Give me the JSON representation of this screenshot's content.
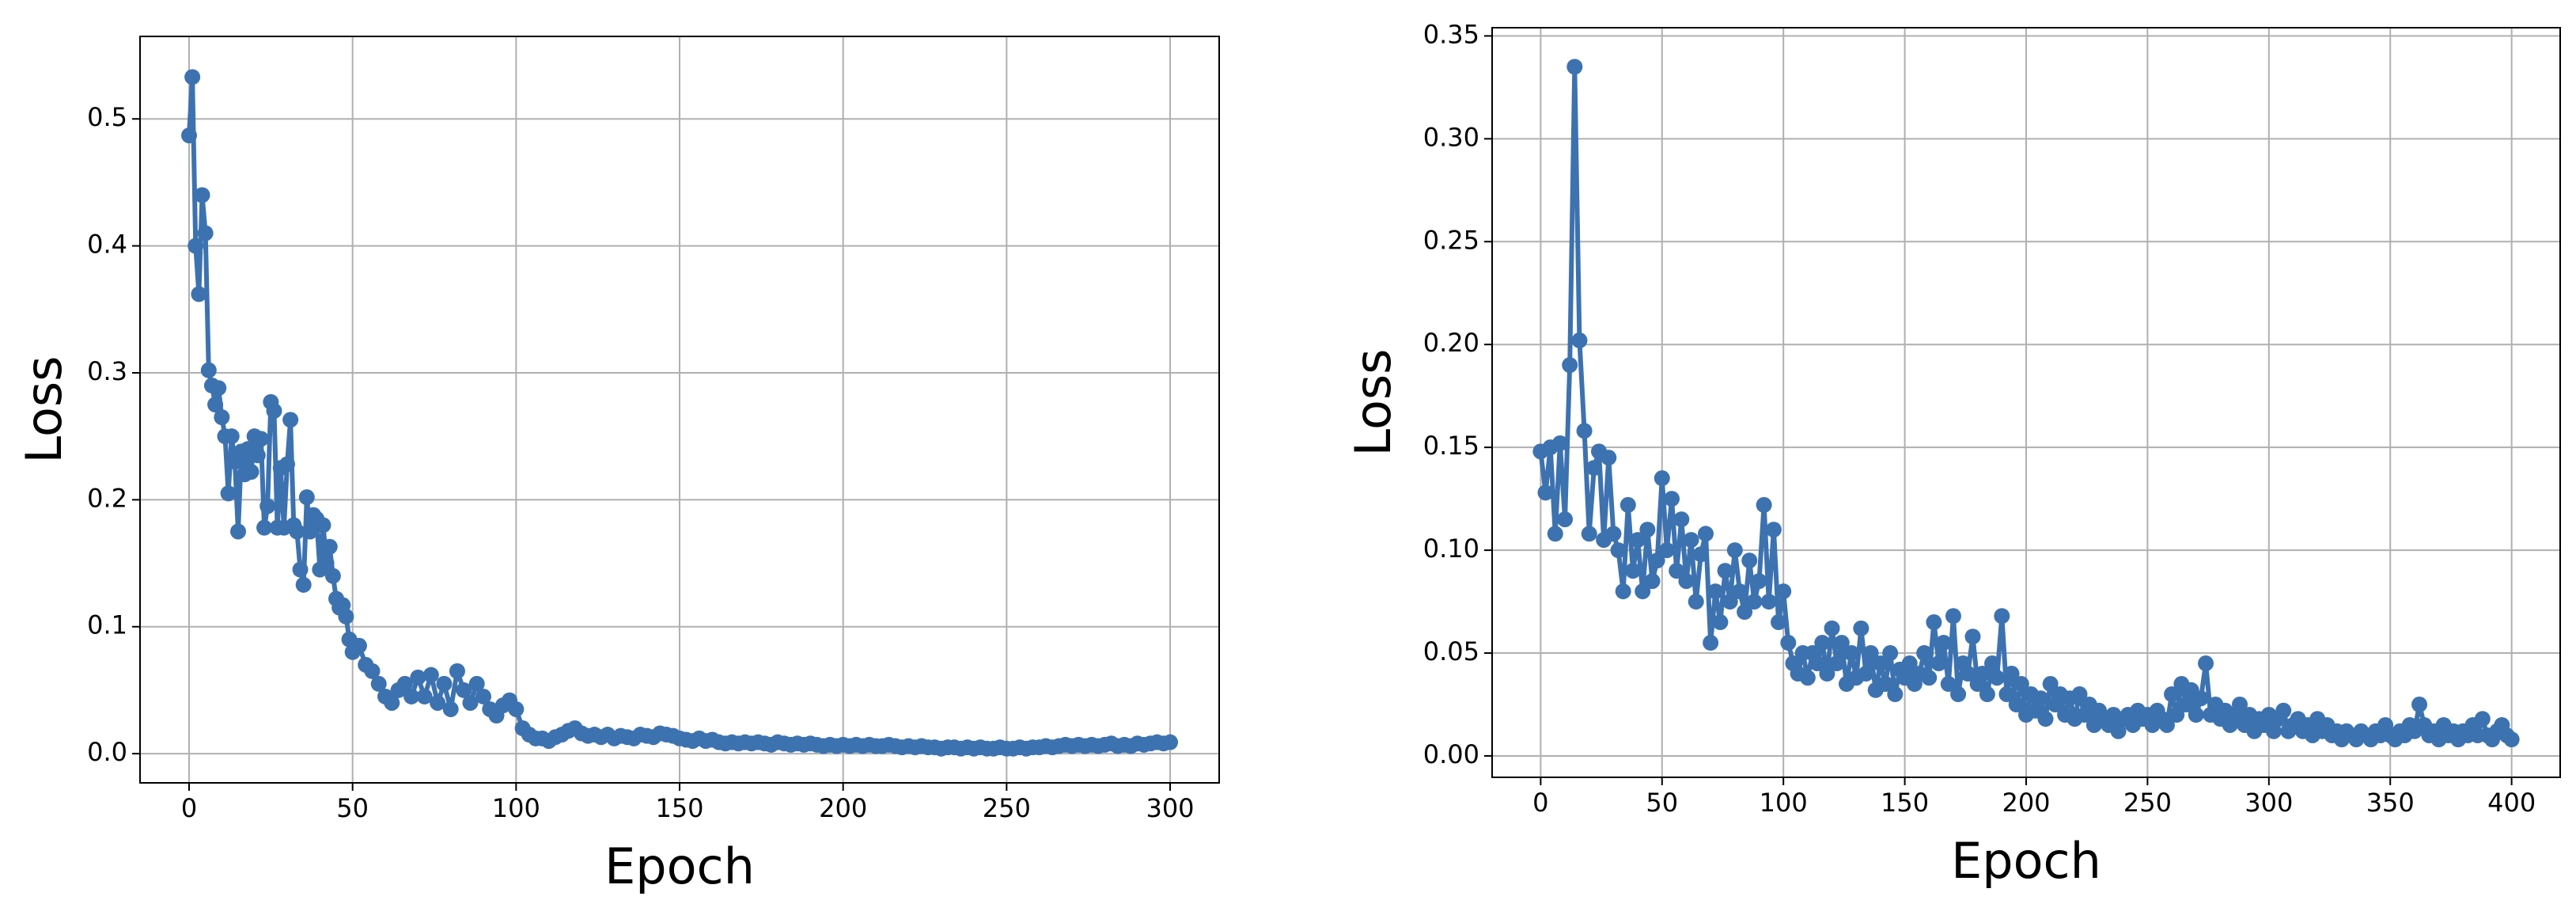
{
  "chart_data": [
    {
      "type": "line",
      "xlabel": "Epoch",
      "ylabel": "Loss",
      "color": "#3d72b0",
      "grid": true,
      "xlim": [
        -15,
        315
      ],
      "ylim": [
        -0.023,
        0.565
      ],
      "xticks": [
        0,
        50,
        100,
        150,
        200,
        250,
        300
      ],
      "yticks": [
        {
          "value": 0,
          "label": "0.0"
        },
        0.1,
        0.2,
        0.3,
        0.4,
        0.5
      ],
      "x": [
        0,
        1,
        2,
        3,
        4,
        5,
        6,
        7,
        8,
        9,
        10,
        11,
        12,
        13,
        14,
        15,
        16,
        17,
        18,
        19,
        20,
        21,
        22,
        23,
        24,
        25,
        26,
        27,
        28,
        29,
        30,
        31,
        32,
        33,
        34,
        35,
        36,
        37,
        38,
        39,
        40,
        41,
        42,
        43,
        44,
        45,
        46,
        47,
        48,
        49,
        50,
        52,
        54,
        56,
        58,
        60,
        62,
        64,
        66,
        68,
        70,
        72,
        74,
        76,
        78,
        80,
        82,
        84,
        86,
        88,
        90,
        92,
        94,
        96,
        98,
        100,
        102,
        104,
        106,
        108,
        110,
        112,
        114,
        116,
        118,
        120,
        122,
        124,
        126,
        128,
        130,
        132,
        134,
        136,
        138,
        140,
        142,
        144,
        146,
        148,
        150,
        152,
        154,
        156,
        158,
        160,
        162,
        164,
        166,
        168,
        170,
        172,
        174,
        176,
        178,
        180,
        182,
        184,
        186,
        188,
        190,
        192,
        194,
        196,
        198,
        200,
        202,
        204,
        206,
        208,
        210,
        212,
        214,
        216,
        218,
        220,
        222,
        224,
        226,
        228,
        230,
        232,
        234,
        236,
        238,
        240,
        242,
        244,
        246,
        248,
        250,
        252,
        254,
        256,
        258,
        260,
        262,
        264,
        266,
        268,
        270,
        272,
        274,
        276,
        278,
        280,
        282,
        284,
        286,
        288,
        290,
        292,
        294,
        296,
        298,
        300
      ],
      "values": [
        0.487,
        0.533,
        0.4,
        0.362,
        0.44,
        0.41,
        0.302,
        0.29,
        0.275,
        0.288,
        0.265,
        0.25,
        0.205,
        0.25,
        0.23,
        0.175,
        0.238,
        0.22,
        0.24,
        0.222,
        0.25,
        0.235,
        0.248,
        0.178,
        0.195,
        0.277,
        0.27,
        0.178,
        0.225,
        0.178,
        0.228,
        0.263,
        0.18,
        0.175,
        0.145,
        0.133,
        0.202,
        0.175,
        0.188,
        0.185,
        0.145,
        0.18,
        0.15,
        0.163,
        0.14,
        0.122,
        0.115,
        0.117,
        0.108,
        0.09,
        0.08,
        0.085,
        0.07,
        0.065,
        0.055,
        0.045,
        0.04,
        0.05,
        0.055,
        0.045,
        0.06,
        0.045,
        0.062,
        0.04,
        0.055,
        0.035,
        0.065,
        0.05,
        0.04,
        0.055,
        0.045,
        0.035,
        0.03,
        0.038,
        0.042,
        0.035,
        0.02,
        0.015,
        0.012,
        0.012,
        0.01,
        0.013,
        0.015,
        0.018,
        0.02,
        0.016,
        0.014,
        0.015,
        0.013,
        0.015,
        0.012,
        0.014,
        0.013,
        0.012,
        0.015,
        0.014,
        0.013,
        0.016,
        0.015,
        0.014,
        0.012,
        0.011,
        0.01,
        0.012,
        0.01,
        0.011,
        0.009,
        0.008,
        0.009,
        0.008,
        0.009,
        0.008,
        0.009,
        0.008,
        0.007,
        0.009,
        0.008,
        0.007,
        0.008,
        0.007,
        0.008,
        0.007,
        0.006,
        0.007,
        0.006,
        0.007,
        0.006,
        0.007,
        0.006,
        0.007,
        0.006,
        0.006,
        0.007,
        0.006,
        0.005,
        0.006,
        0.005,
        0.006,
        0.005,
        0.005,
        0.004,
        0.005,
        0.005,
        0.004,
        0.005,
        0.004,
        0.005,
        0.004,
        0.004,
        0.005,
        0.004,
        0.004,
        0.005,
        0.004,
        0.005,
        0.005,
        0.006,
        0.005,
        0.006,
        0.007,
        0.006,
        0.007,
        0.006,
        0.007,
        0.006,
        0.007,
        0.008,
        0.006,
        0.007,
        0.006,
        0.008,
        0.007,
        0.008,
        0.009,
        0.008,
        0.009
      ]
    },
    {
      "type": "line",
      "xlabel": "Epoch",
      "ylabel": "Loss",
      "color": "#3d72b0",
      "grid": true,
      "xlim": [
        -20,
        420
      ],
      "ylim": [
        -0.0104,
        0.354
      ],
      "xticks": [
        0,
        50,
        100,
        150,
        200,
        250,
        300,
        350,
        400
      ],
      "yticks": [
        {
          "value": 0,
          "label": "0.00"
        },
        0.05,
        {
          "value": 0.1,
          "label": "0.10"
        },
        0.15,
        {
          "value": 0.2,
          "label": "0.20"
        },
        0.25,
        {
          "value": 0.3,
          "label": "0.30"
        },
        0.35
      ],
      "x": [
        0,
        2,
        4,
        6,
        8,
        10,
        12,
        14,
        16,
        18,
        20,
        22,
        24,
        26,
        28,
        30,
        32,
        34,
        36,
        38,
        40,
        42,
        44,
        46,
        48,
        50,
        52,
        54,
        56,
        58,
        60,
        62,
        64,
        66,
        68,
        70,
        72,
        74,
        76,
        78,
        80,
        82,
        84,
        86,
        88,
        90,
        92,
        94,
        96,
        98,
        100,
        102,
        104,
        106,
        108,
        110,
        112,
        114,
        116,
        118,
        120,
        122,
        124,
        126,
        128,
        130,
        132,
        134,
        136,
        138,
        140,
        142,
        144,
        146,
        148,
        150,
        152,
        154,
        156,
        158,
        160,
        162,
        164,
        166,
        168,
        170,
        172,
        174,
        176,
        178,
        180,
        182,
        184,
        186,
        188,
        190,
        192,
        194,
        196,
        198,
        200,
        202,
        204,
        206,
        208,
        210,
        212,
        214,
        216,
        218,
        220,
        222,
        224,
        226,
        228,
        230,
        232,
        234,
        236,
        238,
        240,
        242,
        244,
        246,
        248,
        250,
        252,
        254,
        256,
        258,
        260,
        262,
        264,
        266,
        268,
        270,
        272,
        274,
        276,
        278,
        280,
        282,
        284,
        286,
        288,
        290,
        292,
        294,
        296,
        298,
        300,
        302,
        304,
        306,
        308,
        310,
        312,
        314,
        316,
        318,
        320,
        322,
        324,
        326,
        328,
        330,
        332,
        334,
        336,
        338,
        340,
        342,
        344,
        346,
        348,
        350,
        352,
        354,
        356,
        358,
        360,
        362,
        364,
        366,
        368,
        370,
        372,
        374,
        376,
        378,
        380,
        382,
        384,
        386,
        388,
        390,
        392,
        394,
        396,
        398,
        400
      ],
      "values": [
        0.148,
        0.128,
        0.15,
        0.108,
        0.152,
        0.115,
        0.19,
        0.335,
        0.202,
        0.158,
        0.108,
        0.14,
        0.148,
        0.105,
        0.145,
        0.108,
        0.1,
        0.08,
        0.122,
        0.09,
        0.105,
        0.08,
        0.11,
        0.085,
        0.095,
        0.135,
        0.1,
        0.125,
        0.09,
        0.115,
        0.085,
        0.105,
        0.075,
        0.098,
        0.108,
        0.055,
        0.08,
        0.065,
        0.09,
        0.075,
        0.1,
        0.08,
        0.07,
        0.095,
        0.075,
        0.085,
        0.122,
        0.075,
        0.11,
        0.065,
        0.08,
        0.055,
        0.045,
        0.04,
        0.05,
        0.038,
        0.05,
        0.045,
        0.055,
        0.04,
        0.062,
        0.045,
        0.055,
        0.035,
        0.05,
        0.038,
        0.062,
        0.04,
        0.05,
        0.032,
        0.045,
        0.035,
        0.05,
        0.03,
        0.042,
        0.038,
        0.045,
        0.035,
        0.04,
        0.05,
        0.038,
        0.065,
        0.045,
        0.055,
        0.035,
        0.068,
        0.03,
        0.045,
        0.04,
        0.058,
        0.035,
        0.04,
        0.03,
        0.045,
        0.038,
        0.068,
        0.03,
        0.04,
        0.025,
        0.035,
        0.02,
        0.03,
        0.022,
        0.028,
        0.018,
        0.035,
        0.025,
        0.03,
        0.02,
        0.028,
        0.018,
        0.03,
        0.02,
        0.025,
        0.015,
        0.022,
        0.018,
        0.015,
        0.02,
        0.012,
        0.018,
        0.02,
        0.015,
        0.022,
        0.018,
        0.02,
        0.015,
        0.022,
        0.018,
        0.015,
        0.03,
        0.02,
        0.035,
        0.025,
        0.032,
        0.02,
        0.028,
        0.045,
        0.02,
        0.025,
        0.018,
        0.022,
        0.015,
        0.02,
        0.025,
        0.015,
        0.02,
        0.012,
        0.018,
        0.015,
        0.02,
        0.012,
        0.018,
        0.022,
        0.012,
        0.015,
        0.018,
        0.012,
        0.015,
        0.01,
        0.018,
        0.012,
        0.015,
        0.01,
        0.012,
        0.008,
        0.012,
        0.01,
        0.008,
        0.012,
        0.01,
        0.008,
        0.012,
        0.01,
        0.015,
        0.01,
        0.008,
        0.012,
        0.01,
        0.015,
        0.012,
        0.025,
        0.015,
        0.01,
        0.012,
        0.008,
        0.015,
        0.01,
        0.012,
        0.008,
        0.012,
        0.01,
        0.015,
        0.01,
        0.018,
        0.01,
        0.008,
        0.012,
        0.015,
        0.01,
        0.008
      ]
    }
  ]
}
